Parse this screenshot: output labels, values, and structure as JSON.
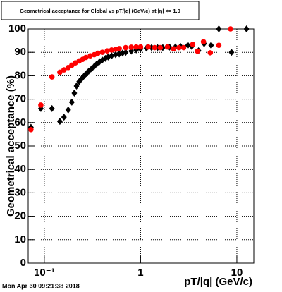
{
  "chart_data": {
    "type": "scatter",
    "title": "Geometrical acceptance for Global vs pT/|q| (GeV/c) at |η| <= 1.0",
    "x_label": "pT/|q| (GeV/c)",
    "y_label": "Geometrical acceptance (%)",
    "timestamp": "Mon Apr 30 09:21:38 2018",
    "log_x": true,
    "grid": true,
    "xlim": [
      0.068,
      15
    ],
    "ylim": [
      0,
      100
    ],
    "xticks": [
      {
        "value": 0.1,
        "label": "10⁻¹"
      },
      1,
      10
    ],
    "yticks": [
      0,
      10,
      20,
      30,
      40,
      50,
      60,
      70,
      80,
      90,
      100
    ],
    "series": [
      {
        "color": "#000000",
        "marker": "diamond",
        "x": [
          0.0726,
          0.092,
          0.12,
          0.145,
          0.16,
          0.177,
          0.193,
          0.205,
          0.216,
          0.23,
          0.245,
          0.26,
          0.275,
          0.29,
          0.31,
          0.33,
          0.35,
          0.375,
          0.4,
          0.43,
          0.46,
          0.5,
          0.55,
          0.6,
          0.65,
          0.7,
          0.8,
          0.9,
          1.0,
          1.15,
          1.3,
          1.5,
          1.7,
          2.0,
          2.3,
          2.6,
          3.1,
          3.4,
          4.0,
          4.57,
          5.4,
          6.5,
          8.8,
          12.6
        ],
        "values": [
          58,
          66,
          66,
          60.5,
          62.3,
          65.4,
          68.7,
          72.6,
          75.6,
          77.5,
          78.8,
          80,
          81,
          82,
          83,
          84,
          85,
          86,
          86.7,
          87.4,
          88,
          88.5,
          89,
          89.3,
          89.7,
          90,
          90.5,
          91,
          91.5,
          91.8,
          92,
          92,
          92,
          92.2,
          92.3,
          92.5,
          93,
          92.5,
          90.7,
          93.7,
          93,
          100,
          90,
          100
        ]
      },
      {
        "color": "#ff0000",
        "marker": "circle",
        "x": [
          0.0726,
          0.092,
          0.12,
          0.145,
          0.16,
          0.177,
          0.193,
          0.21,
          0.23,
          0.25,
          0.27,
          0.3,
          0.33,
          0.36,
          0.4,
          0.45,
          0.5,
          0.55,
          0.6,
          0.7,
          0.8,
          0.9,
          1.0,
          1.2,
          1.4,
          1.6,
          1.9,
          2.2,
          2.5,
          2.8,
          3.48,
          3.9,
          4.5,
          5.3,
          6.5,
          8.6
        ],
        "values": [
          57,
          67.5,
          79.5,
          81.5,
          82.5,
          83.5,
          84.5,
          85.5,
          86.3,
          87,
          87.8,
          88.5,
          89,
          89.6,
          90,
          90.6,
          91,
          91.3,
          91.6,
          92,
          92.2,
          92.3,
          92.3,
          92.3,
          92,
          92,
          92.3,
          91.5,
          92,
          92,
          93.4,
          90.5,
          94.5,
          89.8,
          93,
          100
        ]
      }
    ]
  }
}
